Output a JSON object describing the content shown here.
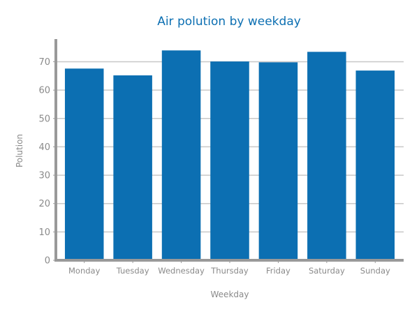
{
  "chart_data": {
    "type": "bar",
    "title": "Air polution by weekday",
    "xlabel": "Weekday",
    "ylabel": "Polution",
    "categories": [
      "Monday",
      "Tuesday",
      "Wednesday",
      "Thursday",
      "Friday",
      "Saturday",
      "Sunday"
    ],
    "values": [
      67.6,
      65.2,
      74.0,
      70.1,
      69.8,
      73.5,
      66.9
    ],
    "ylim": [
      0,
      78
    ],
    "yticks": [
      0,
      10,
      20,
      30,
      40,
      50,
      60,
      70
    ],
    "grid": true,
    "bar_color": "#0c6fb2",
    "grid_color": "#c8c8c8",
    "axis_color": "#999999"
  }
}
